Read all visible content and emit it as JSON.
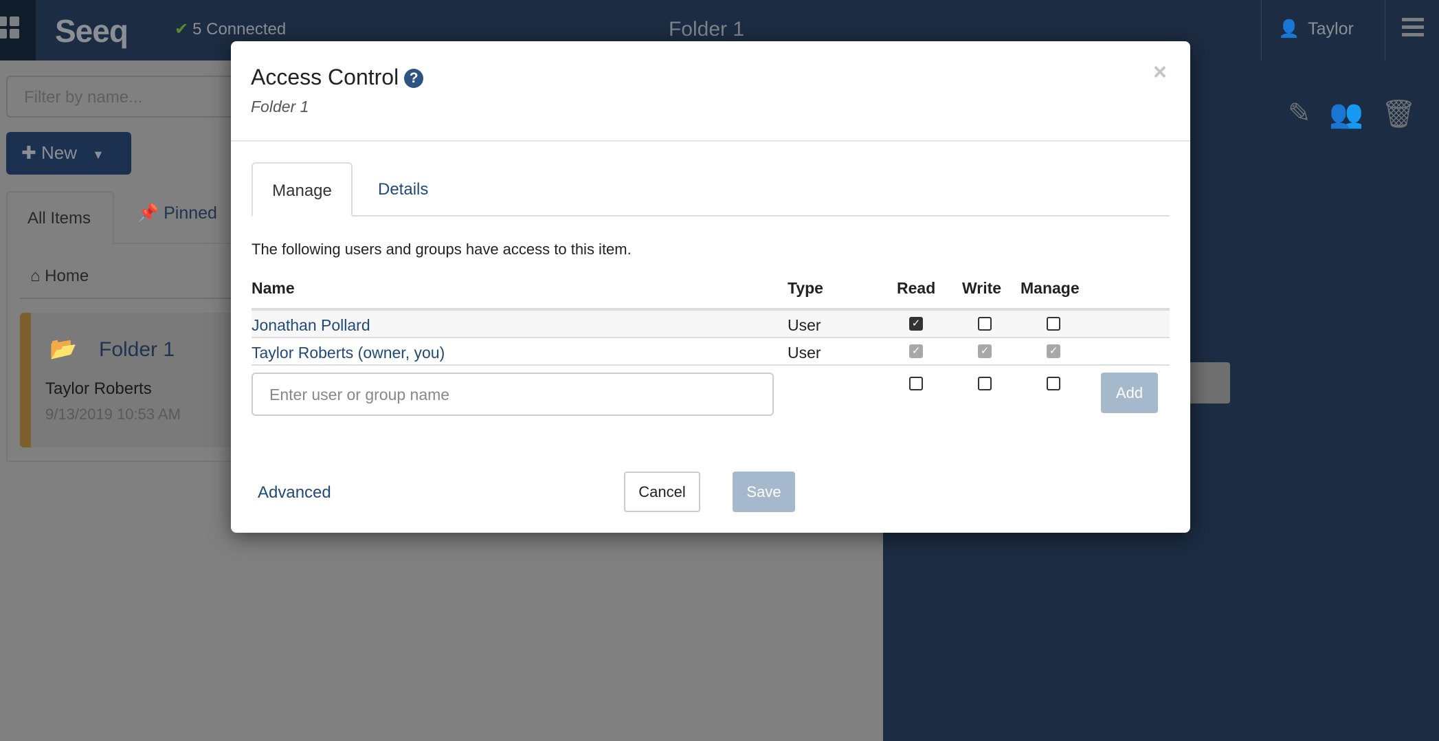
{
  "topbar": {
    "logo": "Seeq",
    "connection_status": "5 Connected",
    "title": "Folder 1",
    "user": "Taylor"
  },
  "left": {
    "filter_placeholder": "Filter by name...",
    "new_label": "New",
    "tabs": [
      "All Items",
      "Pinned"
    ],
    "breadcrumb": "Home",
    "card": {
      "title": "Folder 1",
      "owner": "Taylor Roberts",
      "date": "9/13/2019 10:53 AM"
    }
  },
  "modal": {
    "title": "Access Control",
    "subtitle": "Folder 1",
    "close": "×",
    "tabs": [
      "Manage",
      "Details"
    ],
    "active_tab": "Manage",
    "description": "The following users and groups have access to this item.",
    "columns": [
      "Name",
      "Type",
      "Read",
      "Write",
      "Manage"
    ],
    "rows": [
      {
        "name": "Jonathan Pollard",
        "type": "User",
        "read": true,
        "write": false,
        "manage": false,
        "disabled": false
      },
      {
        "name": "Taylor Roberts (owner, you)",
        "type": "User",
        "read": true,
        "write": true,
        "manage": true,
        "disabled": true
      }
    ],
    "add_placeholder": "Enter user or group name",
    "add_label": "Add",
    "advanced_label": "Advanced",
    "cancel_label": "Cancel",
    "save_label": "Save"
  },
  "colors": {
    "accent": "#1f4a7a",
    "topbar": "#1c2c42",
    "folder_stripe": "#7c5f2a",
    "disabled_button": "#a6b8cb"
  }
}
